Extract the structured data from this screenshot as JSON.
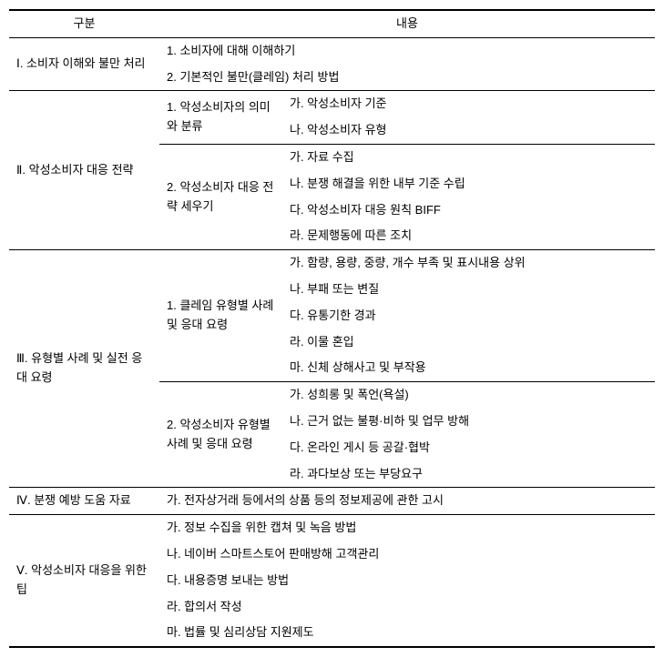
{
  "header": {
    "gubun": "구분",
    "content": "내용"
  },
  "rows": {
    "r1": {
      "title": "Ⅰ. 소비자 이해와 불만 처리",
      "c1": "1. 소비자에 대해 이해하기",
      "c2": "2. 기본적인 불만(클레임) 처리 방법"
    },
    "r2": {
      "title": "Ⅱ. 악성소비자 대응 전략",
      "s1": {
        "mid": "1. 악성소비자의 의미와 분류",
        "a": "가. 악성소비자 기준",
        "b": "나. 악성소비자 유형"
      },
      "s2": {
        "mid": "2. 악성소비자 대응 전략 세우기",
        "a": "가. 자료 수집",
        "b": "나. 분쟁 해결을 위한 내부 기준 수립",
        "c": "다. 악성소비자 대응 원칙 BIFF",
        "d": "라. 문제행동에 따른 조치"
      }
    },
    "r3": {
      "title": "Ⅲ. 유형별 사례 및 실전 응대 요령",
      "s1": {
        "mid": "1. 클레임 유형별 사례 및 응대 요령",
        "a": "가. 함량, 용량, 중량, 개수 부족 및 표시내용 상위",
        "b": "나. 부패 또는 변질",
        "c": "다. 유통기한 경과",
        "d": "라. 이물 혼입",
        "e": "마. 신체 상해사고 및 부작용"
      },
      "s2": {
        "mid": "2. 악성소비자 유형별 사례 및 응대 요령",
        "a": "가. 성희롱 및 폭언(욕설)",
        "b": "나. 근거 없는 불평·비하 및 업무 방해",
        "c": "다. 온라인 게시 등 공갈·협박",
        "d": "라. 과다보상 또는 부당요구"
      }
    },
    "r4": {
      "title": "Ⅳ. 분쟁 예방 도움 자료",
      "a": "가. 전자상거래 등에서의 상품 등의 정보제공에 관한 고시"
    },
    "r5": {
      "title": "Ⅴ. 악성소비자 대응을 위한 팁",
      "a": "가. 정보 수집을 위한 캡쳐 및 녹음 방법",
      "b": "나. 네이버 스마트스토어 판매방해 고객관리",
      "c": "다. 내용증명 보내는 방법",
      "d": "라. 합의서 작성",
      "e": "마. 법률 및 심리상담 지원제도"
    }
  }
}
